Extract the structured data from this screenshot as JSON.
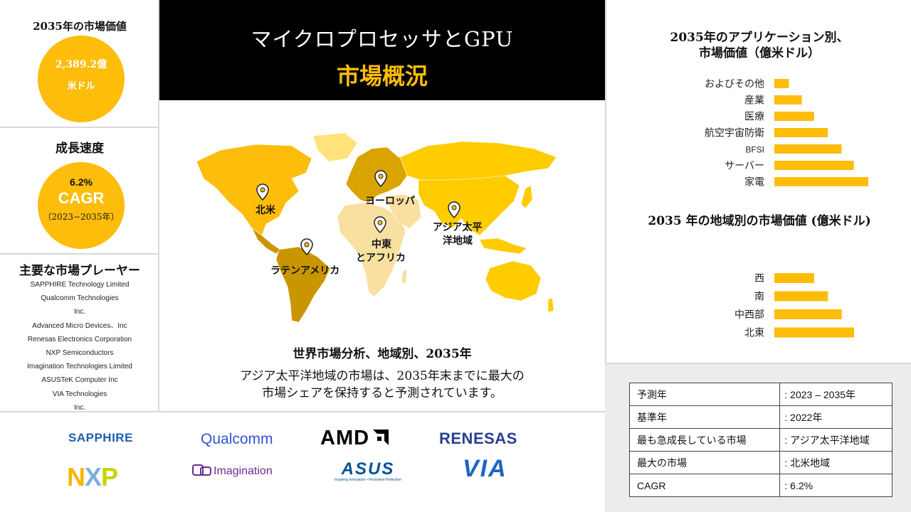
{
  "left_panel": {
    "market_value": {
      "title": "2035年の市場価値",
      "value": "2,389.2億",
      "unit": "米ドル"
    },
    "growth": {
      "title": "成長速度",
      "rate": "6.2%",
      "label": "CAGR",
      "period": "（2023−2035年）"
    },
    "players": {
      "title": "主要な市場プレーヤー",
      "items": [
        "SAPPHIRE Technology Limited",
        "Qualcomm Technologies",
        "Inc.",
        "Advanced Micro Devices、Inc",
        "Renesas Electronics Corporation",
        "NXP Semiconductors",
        "Imagination Technologies Limited",
        "ASUSTeK Computer Inc",
        "VIA Technologies",
        "Inc."
      ]
    }
  },
  "header": {
    "title": "マイクロプロセッサとGPU",
    "subtitle": "市場概況"
  },
  "map": {
    "regions": {
      "north_america": "北米",
      "europe": "ヨーロッパ",
      "asia_pacific_line1": "アジア太平",
      "asia_pacific_line2": "洋地域",
      "middle_east_line1": "中東",
      "middle_east_line2": "とアフリカ",
      "latin_america": "ラテンアメリカ"
    },
    "caption": "世界市場分析、地域別、2035年",
    "description_line1": "アジア太平洋地域の市場は、2035年末までに最大の",
    "description_line2": "市場シェアを保持すると予測されています。",
    "colors": {
      "north_america": "#fdbd0a",
      "europe": "#d9a300",
      "asia_pacific": "#ffcc00",
      "middle_east_africa": "#f7e0a0",
      "latin_america": "#c99500",
      "other": "#ffe27a"
    }
  },
  "chart_data": [
    {
      "type": "bar",
      "orientation": "horizontal",
      "title_line1": "2035年のアプリケーション別、",
      "title_line2": "市場価値（億米ドル）",
      "categories": [
        "およびその他",
        "産業",
        "医療",
        "航空宇宙防衛",
        "BFSI",
        "サーバー",
        "家電"
      ],
      "values": [
        20,
        38,
        55,
        74,
        93,
        110,
        130
      ],
      "color": "#fdbd0a"
    },
    {
      "type": "bar",
      "orientation": "horizontal",
      "title": "2035 年の地域別の市場価値 (億米ドル)",
      "categories": [
        "西",
        "南",
        "中西部",
        "北東"
      ],
      "values": [
        55,
        74,
        93,
        110
      ],
      "color": "#fdbd0a"
    }
  ],
  "info_table": [
    {
      "key": "予測年",
      "value": ": 2023 – 2035年"
    },
    {
      "key": "基準年",
      "value": ": 2022年"
    },
    {
      "key": "最も急成長している市場",
      "value": ": アジア太平洋地域"
    },
    {
      "key": "最大の市場",
      "value": ": 北米地域"
    },
    {
      "key": "CAGR",
      "value": ": 6.2%"
    }
  ],
  "logos": {
    "sapphire": "SAPPHIRE",
    "qualcomm": "Qualcomm",
    "amd": "AMD",
    "renesas": "RENESAS",
    "nxp": "NXP",
    "imagination": "Imagination",
    "asus": "ASUS",
    "asus_tagline": "Inspiring Innovation • Persistent Perfection",
    "via": "VIA"
  }
}
